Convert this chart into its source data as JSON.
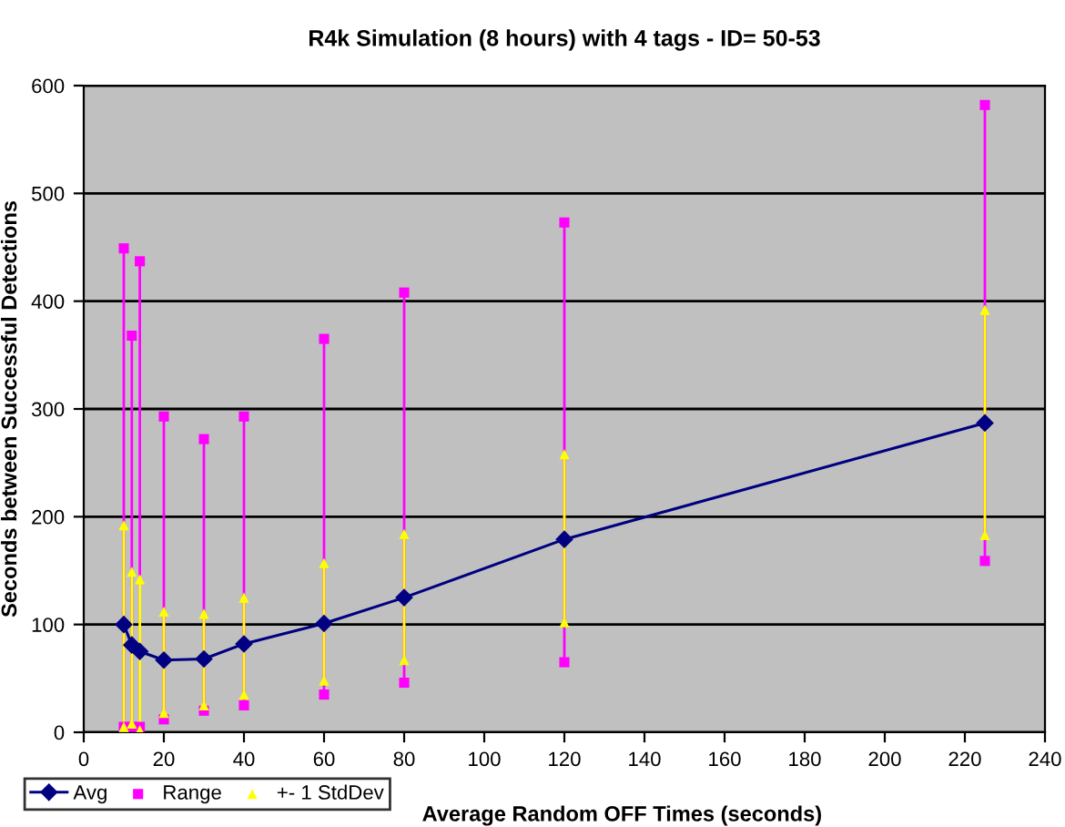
{
  "chart_data": {
    "type": "line",
    "title": "R4k Simulation (8 hours) with 4 tags - ID= 50-53",
    "xlabel": "Average Random OFF Times (seconds)",
    "ylabel": "Seconds between Successful Detections",
    "x": [
      10,
      12,
      14,
      20,
      30,
      40,
      60,
      80,
      120,
      225
    ],
    "series": [
      {
        "name": "Avg",
        "color": "#000080",
        "marker": "diamond",
        "values": [
          100,
          81,
          75,
          67,
          68,
          82,
          101,
          125,
          179,
          287
        ]
      },
      {
        "name": "Range",
        "type": "scatter",
        "color": "#ff00ff",
        "marker": "square",
        "values": [
          449,
          368,
          437,
          293,
          272,
          293,
          365,
          408,
          473,
          582
        ],
        "errors": [
          [
            5,
            449
          ],
          [
            5,
            368
          ],
          [
            5,
            437
          ],
          [
            12,
            293
          ],
          [
            20,
            272
          ],
          [
            25,
            293
          ],
          [
            35,
            365
          ],
          [
            46,
            408
          ],
          [
            65,
            473
          ],
          [
            159,
            582
          ]
        ]
      },
      {
        "type": "scatter",
        "color": "#ff00ff",
        "marker": "square",
        "values": [
          5,
          5,
          5,
          12,
          20,
          25,
          35,
          46,
          65,
          159
        ]
      },
      {
        "name": "+- 1 StdDev",
        "type": "scatter",
        "color": "#ffff00",
        "marker": "triangle",
        "values": [
          192,
          149,
          142,
          112,
          110,
          125,
          157,
          184,
          258,
          392
        ],
        "errors": [
          [
            5,
            192
          ],
          [
            8,
            149
          ],
          [
            2,
            142
          ],
          [
            18,
            112
          ],
          [
            25,
            110
          ],
          [
            35,
            125
          ],
          [
            48,
            157
          ],
          [
            67,
            184
          ],
          [
            102,
            258
          ],
          [
            183,
            392
          ]
        ]
      },
      {
        "type": "scatter",
        "color": "#ffff00",
        "marker": "triangle",
        "values": [
          5,
          8,
          2,
          18,
          25,
          35,
          48,
          67,
          102,
          183
        ]
      }
    ],
    "xlim": [
      0,
      240
    ],
    "xticks": [
      0,
      20,
      40,
      60,
      80,
      100,
      120,
      140,
      160,
      180,
      200,
      220,
      240
    ],
    "ylim": [
      0,
      600
    ],
    "yticks": [
      0,
      100,
      200,
      300,
      400,
      500,
      600
    ],
    "grid": "y",
    "legend": "bottom left"
  }
}
